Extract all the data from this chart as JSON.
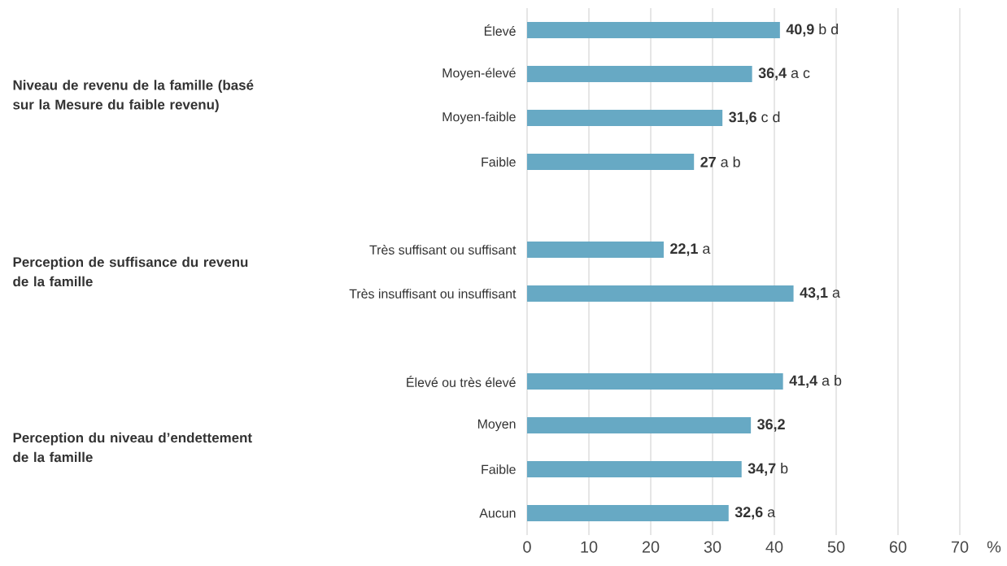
{
  "chart_data": {
    "type": "bar",
    "orientation": "horizontal",
    "color": "#67a9c4",
    "categories": [
      "Élevé",
      "Moyen-élevé",
      "Moyen-faible",
      "Faible",
      null,
      "Très suffisant ou suffisant",
      "Très insuffisant ou insuffisant",
      null,
      "Élevé ou très élevé",
      "Moyen",
      "Faible",
      "Aucun"
    ],
    "values": [
      40.9,
      36.4,
      31.6,
      27,
      null,
      22.1,
      43.1,
      null,
      41.4,
      36.2,
      34.7,
      32.6
    ],
    "value_labels": [
      "**40,9** b d",
      "**36,4** a c",
      "**31,6** c d",
      "**27** a b",
      null,
      "**22,1** a",
      "**43,1** a",
      null,
      "**41,4** a b",
      "**36,2**",
      "**34,7** b",
      "**32,6** a"
    ],
    "xlabel": "%",
    "xlim": [
      0,
      70
    ],
    "xticks": [
      0,
      10,
      20,
      30,
      40,
      50,
      60,
      70
    ],
    "grid": "x",
    "annotations": [
      "Niveau de revenu de la famille (basé sur la Mesure du faible revenu)",
      "Perception de suffisance du revenu de la famille",
      "Perception du niveau d’endettement de la famille"
    ]
  }
}
